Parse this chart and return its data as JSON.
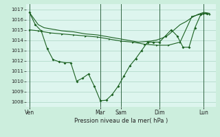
{
  "bg_color": "#cceedd",
  "plot_bg_color": "#ddf5ee",
  "grid_color": "#aad4c4",
  "line_color": "#1a6020",
  "vline_color": "#336644",
  "xlabel": "Pression niveau de la mer( hPa )",
  "ylim": [
    1007.5,
    1017.5
  ],
  "yticks": [
    1008,
    1009,
    1010,
    1011,
    1012,
    1013,
    1014,
    1015,
    1016,
    1017
  ],
  "xlim": [
    0,
    32
  ],
  "day_labels": [
    "Ven",
    "Mar",
    "Sam",
    "Dim",
    "Lun"
  ],
  "day_positions": [
    0.5,
    12.5,
    16.0,
    22.5,
    30.0
  ],
  "vline_positions": [
    0.5,
    12.5,
    16.0,
    22.5,
    30.0
  ],
  "series1_x": [
    0.5,
    2,
    3,
    4,
    5,
    6,
    7,
    8,
    9,
    10,
    11,
    12,
    13,
    14,
    15,
    16,
    17,
    18,
    19,
    20,
    21,
    22,
    23,
    24,
    25,
    26,
    27,
    28,
    29,
    30,
    31
  ],
  "series1_y": [
    1016.7,
    1015.5,
    1015.2,
    1015.1,
    1015.0,
    1014.9,
    1014.85,
    1014.8,
    1014.7,
    1014.6,
    1014.55,
    1014.5,
    1014.4,
    1014.3,
    1014.2,
    1014.1,
    1014.0,
    1013.9,
    1013.8,
    1013.85,
    1013.9,
    1014.0,
    1014.2,
    1014.5,
    1015.0,
    1015.5,
    1015.8,
    1016.2,
    1016.5,
    1016.7,
    1016.6
  ],
  "series2_x": [
    0.5,
    2,
    4,
    6,
    8,
    10,
    12,
    14,
    16,
    18,
    20,
    22,
    24,
    26,
    28,
    30,
    31
  ],
  "series2_y": [
    1015.0,
    1014.9,
    1014.7,
    1014.6,
    1014.5,
    1014.4,
    1014.3,
    1014.1,
    1013.9,
    1013.8,
    1013.6,
    1013.5,
    1013.5,
    1013.8,
    1016.3,
    1016.6,
    1016.5
  ],
  "series3_x": [
    0.5,
    1.5,
    2.5,
    3.5,
    4.5,
    5.5,
    6.5,
    7.5,
    8.5,
    9.5,
    10.5,
    11.5,
    12.5,
    13.5,
    14.5,
    15.5,
    16.5,
    17.5,
    18.5,
    19.5,
    20.5,
    21.5,
    22.5,
    23.5,
    24.5,
    25.5,
    26.5,
    27.5,
    28.5,
    29.5,
    30.5
  ],
  "series3_y": [
    1016.7,
    1015.5,
    1014.9,
    1013.2,
    1012.1,
    1011.9,
    1011.8,
    1011.8,
    1010.0,
    1010.3,
    1010.7,
    1009.5,
    1008.1,
    1008.15,
    1008.7,
    1009.5,
    1010.5,
    1011.5,
    1012.2,
    1013.0,
    1013.8,
    1013.8,
    1013.8,
    1014.4,
    1015.0,
    1014.4,
    1013.3,
    1013.3,
    1015.2,
    1016.5,
    1016.6
  ]
}
